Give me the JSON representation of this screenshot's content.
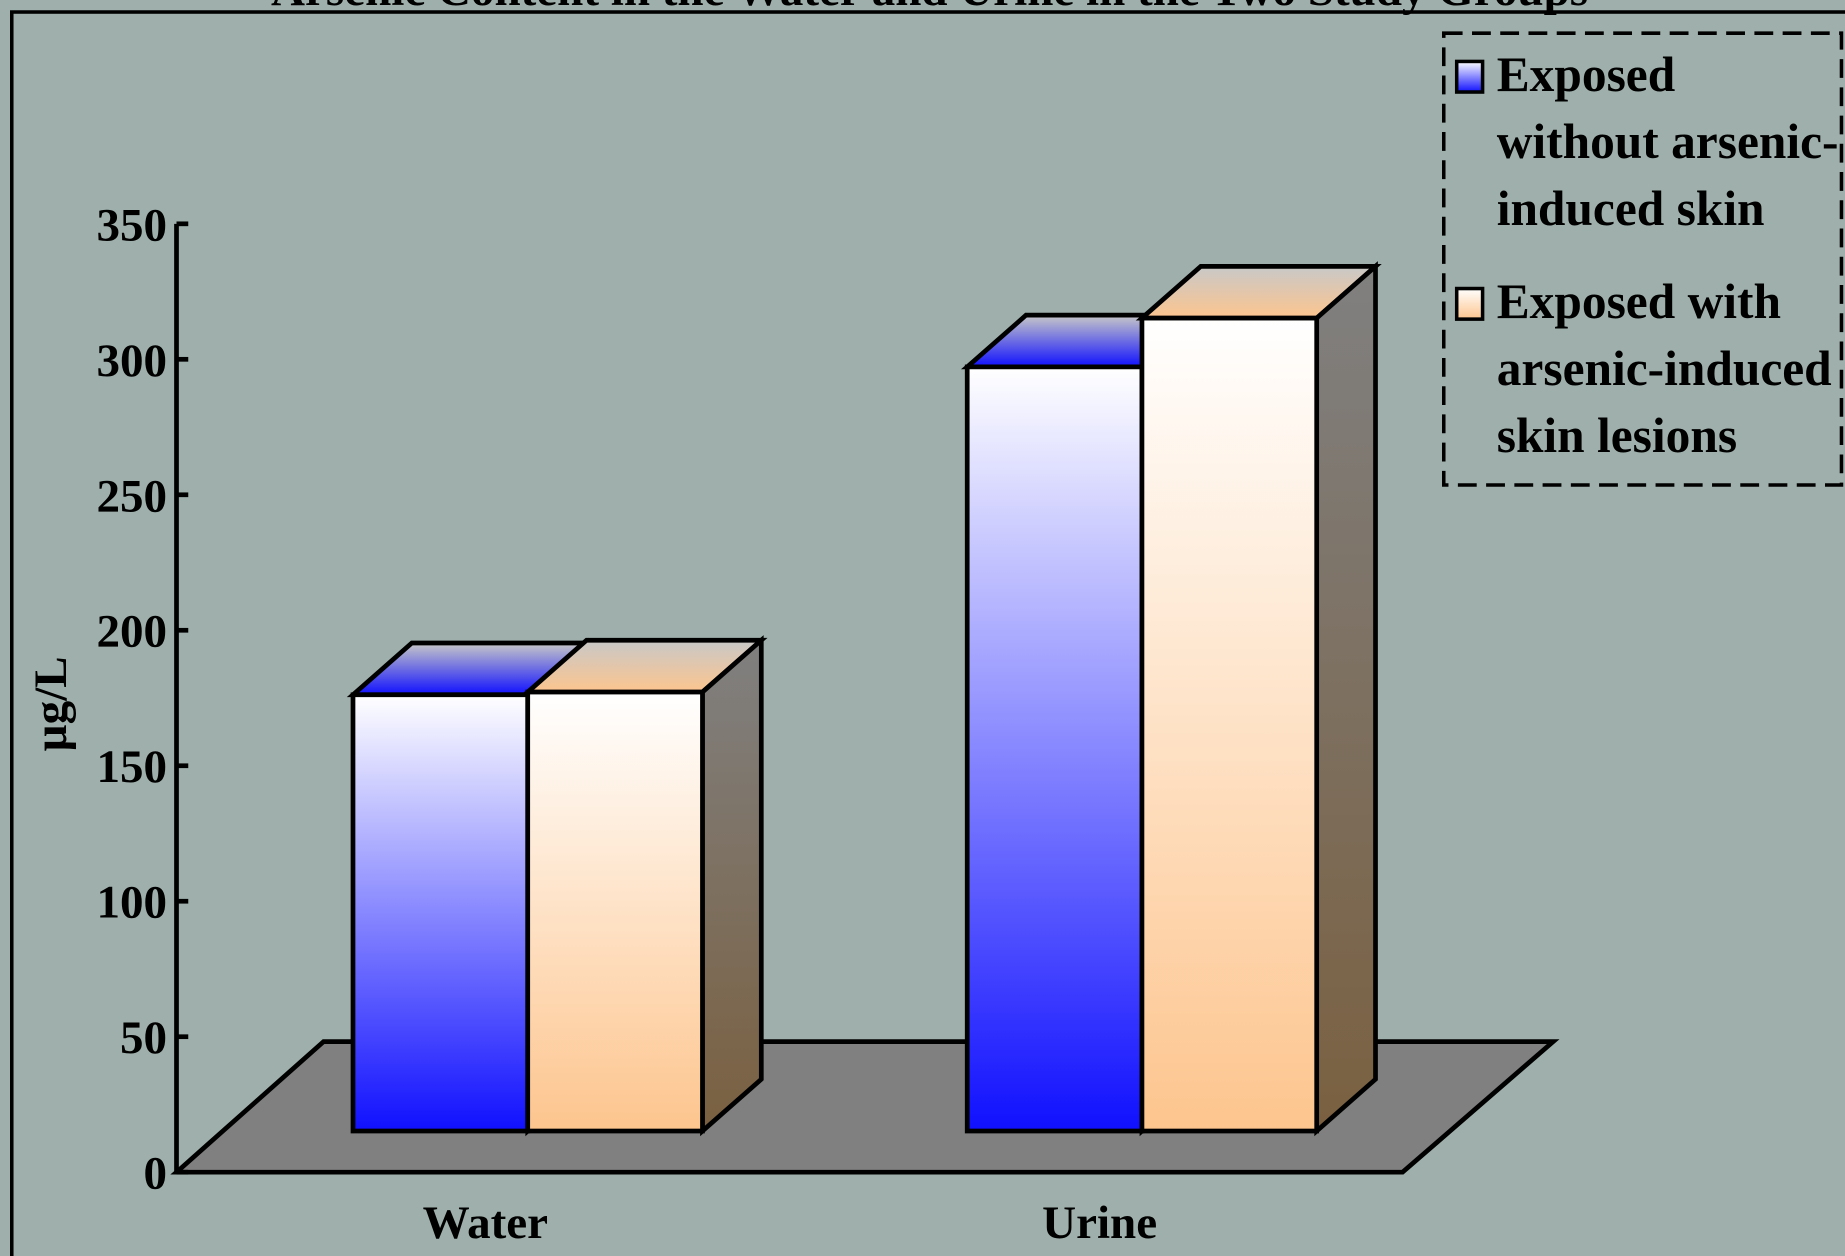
{
  "chart_data": {
    "type": "bar3d",
    "title": "Arsenic Content in the Water and Urine in the Two Study Groups",
    "y_label": "µg/L",
    "categories": [
      "Water",
      "Urine"
    ],
    "series": [
      {
        "name": "Exposed without arsenic-induced skin lesions",
        "color": "#1010ff",
        "values": [
          161,
          282
        ]
      },
      {
        "name": "Exposed with arsenic-induced skin lesions",
        "color": "#fdc58e",
        "values": [
          162,
          300
        ]
      }
    ],
    "ylim": [
      0,
      350
    ],
    "yticks": [
      0,
      50,
      100,
      150,
      200,
      250,
      300,
      350
    ],
    "legend": "top-right"
  }
}
